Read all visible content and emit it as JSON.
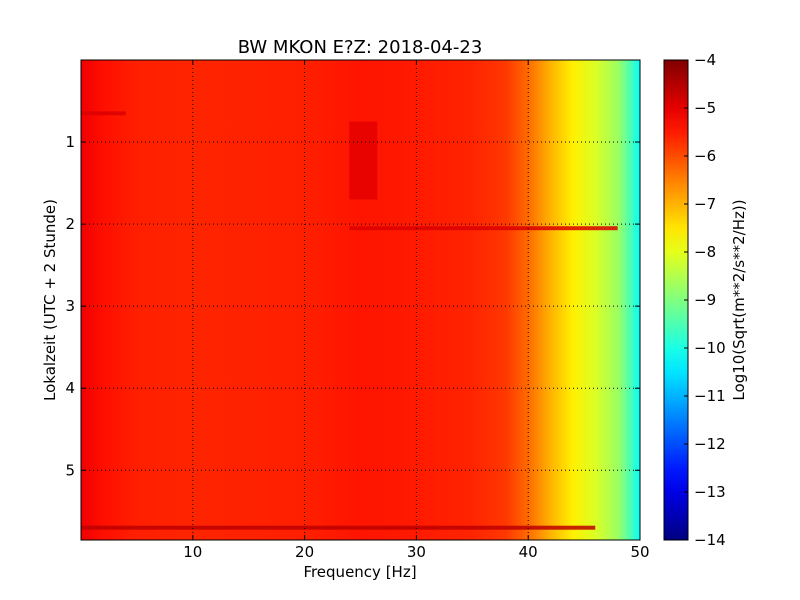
{
  "chart_data": {
    "type": "heatmap",
    "title": "BW MKON E?Z: 2018-04-23",
    "xlabel": "Frequency [Hz]",
    "ylabel": "Lokalzeit (UTC + 2 Stunde)",
    "xlim": [
      0,
      50
    ],
    "ylim": [
      5.85,
      0
    ],
    "x_ticks": [
      10,
      20,
      30,
      40,
      50
    ],
    "y_ticks": [
      1,
      2,
      3,
      4,
      5
    ],
    "grid": true,
    "colorbar": {
      "label": "Log10(Sqrt(m**2/s**2/Hz))",
      "range": [
        -14,
        -4
      ],
      "ticks": [
        -4,
        -5,
        -6,
        -7,
        -8,
        -9,
        -10,
        -11,
        -12,
        -13,
        -14
      ],
      "colormap": "jet"
    },
    "frequency_profile": [
      {
        "f": 0,
        "v": -5.1
      },
      {
        "f": 2,
        "v": -5.4
      },
      {
        "f": 5,
        "v": -5.55
      },
      {
        "f": 10,
        "v": -5.6
      },
      {
        "f": 20,
        "v": -5.55
      },
      {
        "f": 25,
        "v": -5.45
      },
      {
        "f": 30,
        "v": -5.5
      },
      {
        "f": 35,
        "v": -5.6
      },
      {
        "f": 38,
        "v": -5.8
      },
      {
        "f": 40,
        "v": -6.3
      },
      {
        "f": 42,
        "v": -7.0
      },
      {
        "f": 44,
        "v": -7.6
      },
      {
        "f": 46,
        "v": -8.1
      },
      {
        "f": 48,
        "v": -8.7
      },
      {
        "f": 49,
        "v": -9.4
      },
      {
        "f": 50,
        "v": -10.2
      }
    ],
    "features": [
      {
        "time": 0.65,
        "f_from": 0,
        "f_to": 4,
        "v": -4.9
      },
      {
        "time": 2.05,
        "f_from": 24,
        "f_to": 48,
        "v": -4.9
      },
      {
        "time": 5.7,
        "f_from": 0,
        "f_to": 46,
        "v": -4.6
      },
      {
        "time_from": 0.75,
        "time_to": 1.7,
        "f_from": 24,
        "f_to": 26.5,
        "v": -5.0
      }
    ]
  }
}
